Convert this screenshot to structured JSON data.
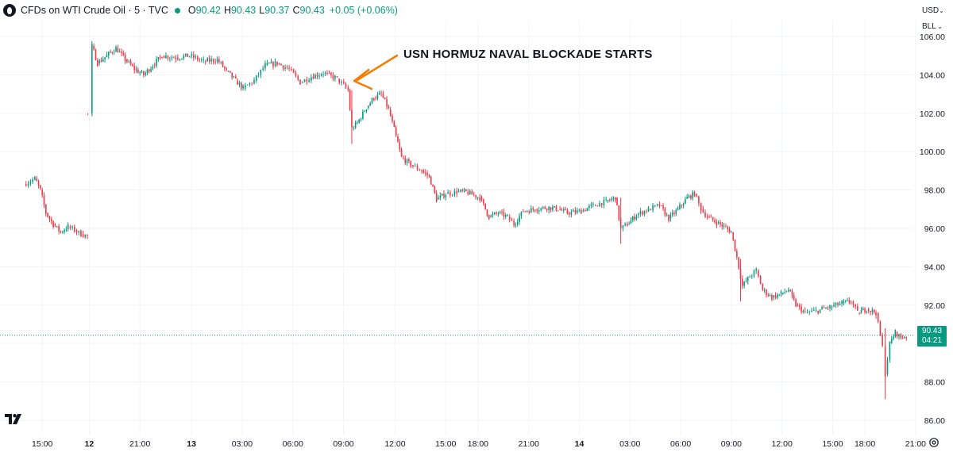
{
  "header": {
    "title": "CFDs on WTI Crude Oil · 5 · TVC",
    "open_key": "O",
    "open": "90.42",
    "high_key": "H",
    "high": "90.43",
    "low_key": "L",
    "low": "90.37",
    "close_key": "C",
    "close": "90.43",
    "change": "+0.05 (+0.06%)"
  },
  "toolbar": {
    "currency": "USD",
    "unit": "BLL"
  },
  "price_label": {
    "price": "90.43",
    "countdown": "04:21"
  },
  "annotation": "USN HORMUZ NAVAL BLOCKADE STARTS",
  "colors": {
    "up": "#089981",
    "down": "#F23645",
    "arrow": "#F57C00",
    "grid": "#F0F3FA"
  },
  "chart_data": {
    "type": "candlestick",
    "title": "CFDs on WTI Crude Oil",
    "interval": "5",
    "source": "TVC",
    "ylim": [
      85.4,
      106.8
    ],
    "y_ticks": [
      "106.00",
      "104.00",
      "102.00",
      "100.00",
      "98.00",
      "96.00",
      "94.00",
      "92.00",
      "90.00",
      "88.00",
      "86.00"
    ],
    "x_ticks": [
      {
        "label": "15:00",
        "pos": 0.02
      },
      {
        "label": "12",
        "pos": 0.071,
        "bold": true
      },
      {
        "label": "21:00",
        "pos": 0.126
      },
      {
        "label": "13",
        "pos": 0.182,
        "bold": true
      },
      {
        "label": "03:00",
        "pos": 0.237
      },
      {
        "label": "06:00",
        "pos": 0.292
      },
      {
        "label": "09:00",
        "pos": 0.347
      },
      {
        "label": "12:00",
        "pos": 0.403
      },
      {
        "label": "15:00",
        "pos": 0.458
      },
      {
        "label": "18:00",
        "pos": 0.493
      },
      {
        "label": "21:00",
        "pos": 0.548
      },
      {
        "label": "14",
        "pos": 0.603,
        "bold": true
      },
      {
        "label": "03:00",
        "pos": 0.658
      },
      {
        "label": "06:00",
        "pos": 0.713
      },
      {
        "label": "09:00",
        "pos": 0.768
      },
      {
        "label": "12:00",
        "pos": 0.823
      },
      {
        "label": "15:00",
        "pos": 0.878
      },
      {
        "label": "18:00",
        "pos": 0.913
      },
      {
        "label": "21:00",
        "pos": 0.968
      }
    ],
    "last_price": 90.43,
    "annotation_at": {
      "pos": 0.363,
      "price": 103.6
    },
    "path": [
      {
        "pos": 0.0,
        "p": 98.3
      },
      {
        "pos": 0.012,
        "p": 98.6
      },
      {
        "pos": 0.018,
        "p": 98.0
      },
      {
        "pos": 0.024,
        "p": 96.8
      },
      {
        "pos": 0.032,
        "p": 96.2
      },
      {
        "pos": 0.04,
        "p": 95.8
      },
      {
        "pos": 0.048,
        "p": 96.1
      },
      {
        "pos": 0.055,
        "p": 95.9
      },
      {
        "pos": 0.062,
        "p": 95.7
      },
      {
        "pos": 0.069,
        "p": 95.6
      },
      {
        "gap": true
      },
      {
        "pos": 0.072,
        "p": 102.0
      },
      {
        "pos": 0.074,
        "p": 105.5
      },
      {
        "pos": 0.08,
        "p": 104.6
      },
      {
        "pos": 0.09,
        "p": 105.0
      },
      {
        "pos": 0.1,
        "p": 105.4
      },
      {
        "pos": 0.11,
        "p": 104.8
      },
      {
        "pos": 0.12,
        "p": 104.3
      },
      {
        "pos": 0.13,
        "p": 104.0
      },
      {
        "pos": 0.14,
        "p": 104.5
      },
      {
        "pos": 0.15,
        "p": 105.0
      },
      {
        "pos": 0.165,
        "p": 104.9
      },
      {
        "pos": 0.18,
        "p": 105.0
      },
      {
        "pos": 0.195,
        "p": 104.7
      },
      {
        "pos": 0.21,
        "p": 104.8
      },
      {
        "pos": 0.22,
        "p": 104.2
      },
      {
        "pos": 0.23,
        "p": 103.7
      },
      {
        "pos": 0.238,
        "p": 103.3
      },
      {
        "pos": 0.25,
        "p": 103.7
      },
      {
        "pos": 0.262,
        "p": 104.5
      },
      {
        "pos": 0.275,
        "p": 104.6
      },
      {
        "pos": 0.288,
        "p": 104.3
      },
      {
        "pos": 0.3,
        "p": 103.6
      },
      {
        "pos": 0.312,
        "p": 103.9
      },
      {
        "pos": 0.325,
        "p": 104.1
      },
      {
        "pos": 0.34,
        "p": 103.8
      },
      {
        "pos": 0.352,
        "p": 103.2
      },
      {
        "pos": 0.356,
        "p": 101.2
      },
      {
        "pos": 0.362,
        "p": 101.5
      },
      {
        "pos": 0.372,
        "p": 102.3
      },
      {
        "pos": 0.38,
        "p": 102.8
      },
      {
        "pos": 0.388,
        "p": 103.0
      },
      {
        "pos": 0.396,
        "p": 102.2
      },
      {
        "pos": 0.404,
        "p": 100.8
      },
      {
        "pos": 0.41,
        "p": 99.7
      },
      {
        "pos": 0.42,
        "p": 99.3
      },
      {
        "pos": 0.432,
        "p": 99.0
      },
      {
        "pos": 0.44,
        "p": 98.7
      },
      {
        "pos": 0.448,
        "p": 97.5
      },
      {
        "pos": 0.458,
        "p": 97.8
      },
      {
        "pos": 0.47,
        "p": 97.9
      },
      {
        "pos": 0.48,
        "p": 97.9
      },
      {
        "pos": 0.495,
        "p": 97.6
      },
      {
        "pos": 0.505,
        "p": 96.6
      },
      {
        "pos": 0.515,
        "p": 96.8
      },
      {
        "pos": 0.525,
        "p": 96.6
      },
      {
        "pos": 0.532,
        "p": 96.2
      },
      {
        "pos": 0.542,
        "p": 96.9
      },
      {
        "pos": 0.555,
        "p": 97.0
      },
      {
        "pos": 0.57,
        "p": 97.1
      },
      {
        "pos": 0.58,
        "p": 97.0
      },
      {
        "pos": 0.59,
        "p": 96.8
      },
      {
        "pos": 0.605,
        "p": 96.9
      },
      {
        "pos": 0.618,
        "p": 97.2
      },
      {
        "pos": 0.632,
        "p": 97.4
      },
      {
        "pos": 0.642,
        "p": 97.6
      },
      {
        "pos": 0.648,
        "p": 96.0
      },
      {
        "pos": 0.655,
        "p": 96.2
      },
      {
        "pos": 0.665,
        "p": 96.7
      },
      {
        "pos": 0.678,
        "p": 97.0
      },
      {
        "pos": 0.69,
        "p": 97.2
      },
      {
        "pos": 0.7,
        "p": 96.5
      },
      {
        "pos": 0.71,
        "p": 97.0
      },
      {
        "pos": 0.72,
        "p": 97.6
      },
      {
        "pos": 0.728,
        "p": 97.8
      },
      {
        "pos": 0.735,
        "p": 97.0
      },
      {
        "pos": 0.742,
        "p": 96.6
      },
      {
        "pos": 0.752,
        "p": 96.3
      },
      {
        "pos": 0.76,
        "p": 96.1
      },
      {
        "pos": 0.768,
        "p": 95.8
      },
      {
        "pos": 0.774,
        "p": 94.5
      },
      {
        "pos": 0.78,
        "p": 93.0
      },
      {
        "pos": 0.788,
        "p": 93.5
      },
      {
        "pos": 0.795,
        "p": 93.8
      },
      {
        "pos": 0.802,
        "p": 92.8
      },
      {
        "pos": 0.812,
        "p": 92.4
      },
      {
        "pos": 0.822,
        "p": 92.6
      },
      {
        "pos": 0.83,
        "p": 92.8
      },
      {
        "pos": 0.838,
        "p": 92.0
      },
      {
        "pos": 0.848,
        "p": 91.6
      },
      {
        "pos": 0.86,
        "p": 91.7
      },
      {
        "pos": 0.875,
        "p": 91.9
      },
      {
        "pos": 0.888,
        "p": 92.1
      },
      {
        "pos": 0.898,
        "p": 92.2
      },
      {
        "pos": 0.905,
        "p": 91.6
      },
      {
        "pos": 0.915,
        "p": 91.8
      },
      {
        "pos": 0.925,
        "p": 91.6
      },
      {
        "pos": 0.932,
        "p": 89.8
      },
      {
        "pos": 0.935,
        "p": 88.4
      },
      {
        "pos": 0.94,
        "p": 90.0
      },
      {
        "pos": 0.946,
        "p": 90.6
      },
      {
        "pos": 0.952,
        "p": 90.3
      },
      {
        "pos": 0.958,
        "p": 90.4
      }
    ],
    "spikes": [
      {
        "pos": 0.0695,
        "hi": 102.0,
        "lo": 101.9
      },
      {
        "pos": 0.356,
        "hi": 103.2,
        "lo": 100.4
      },
      {
        "pos": 0.648,
        "hi": 97.6,
        "lo": 95.2
      },
      {
        "pos": 0.778,
        "hi": 94.4,
        "lo": 92.2
      },
      {
        "pos": 0.935,
        "hi": 90.8,
        "lo": 87.1
      }
    ]
  }
}
